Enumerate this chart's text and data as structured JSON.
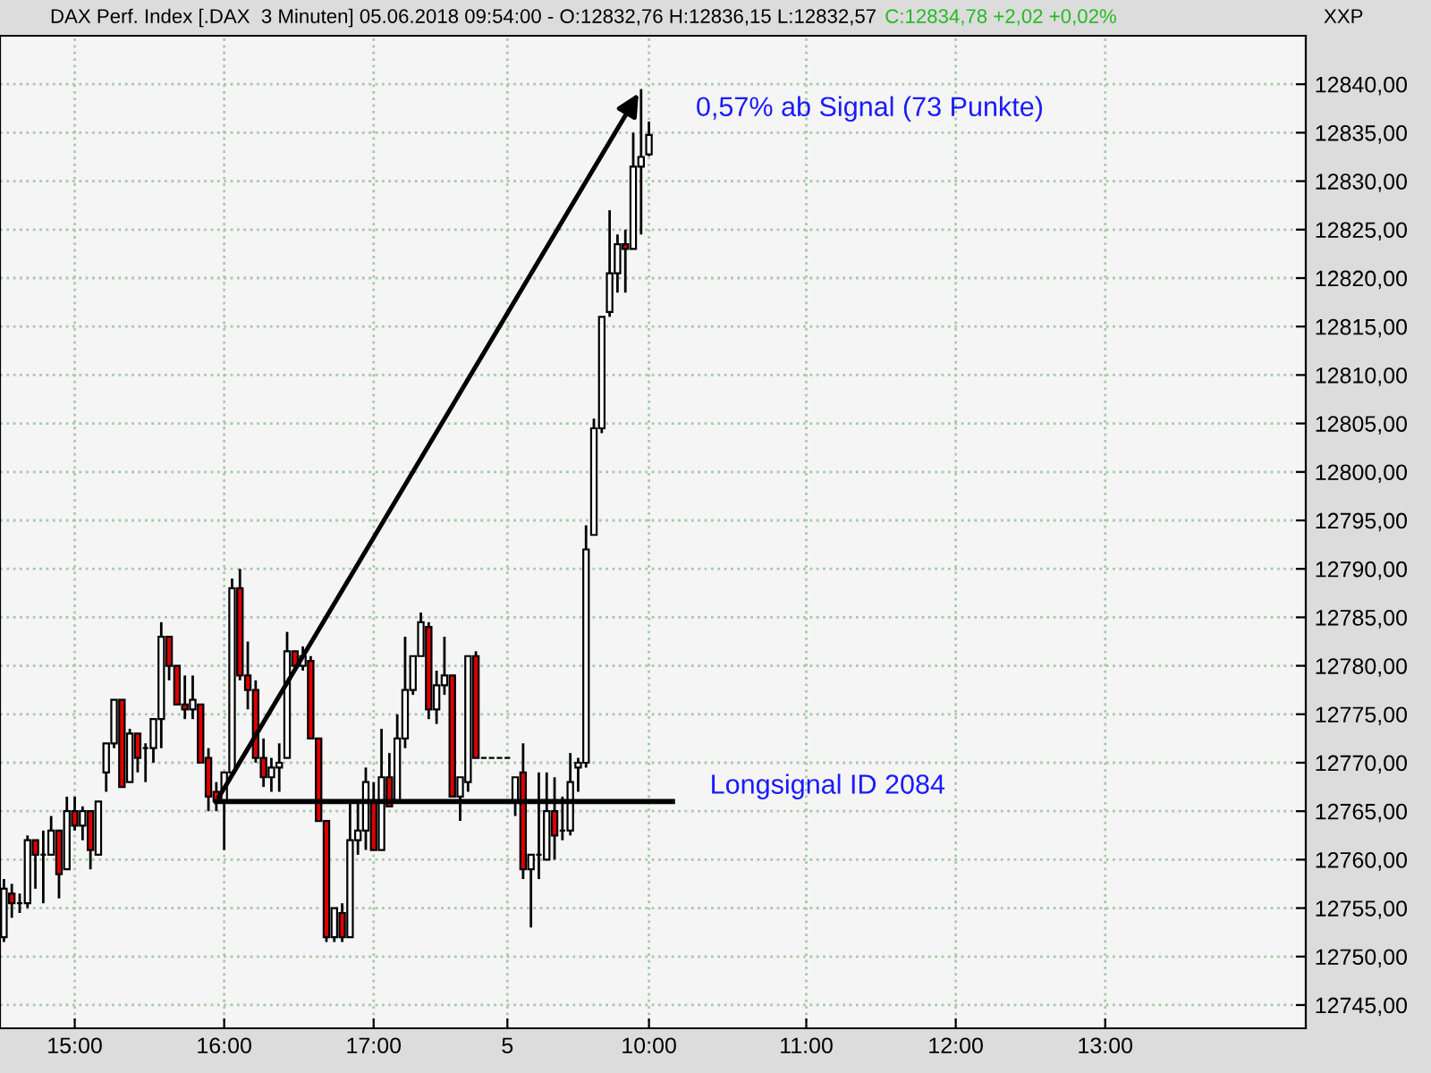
{
  "chart_data": {
    "type": "candlestick",
    "title": "DAX Perf. Index [.DAX  3 Minuten] 05.06.2018 09:54:00 - O:12832,76 H:12836,15 L:12832,57",
    "subtitle": "C:12834,78 +2,02 +0,02%",
    "categories": [
      null,
      null,
      null,
      null,
      null,
      null,
      null,
      null,
      null,
      "15:00",
      null,
      null,
      null,
      null,
      null,
      null,
      null,
      null,
      null,
      null,
      null,
      null,
      null,
      null,
      null,
      null,
      null,
      null,
      "16:00",
      null,
      null,
      null,
      null,
      null,
      null,
      null,
      null,
      null,
      null,
      null,
      null,
      null,
      null,
      null,
      null,
      null,
      null,
      "17:00",
      null,
      null,
      null,
      null,
      null,
      null,
      null,
      null,
      null,
      null,
      null,
      null,
      null,
      null,
      null,
      null,
      "5",
      null,
      null,
      null,
      null,
      null,
      null,
      null,
      null,
      null,
      null,
      null,
      null,
      null,
      null,
      null,
      null,
      null,
      "10:00",
      null,
      null,
      null,
      null,
      null,
      null,
      null,
      null,
      null,
      null,
      null,
      null,
      null,
      null,
      null,
      null,
      null,
      null,
      null,
      "11:00",
      null,
      null,
      null,
      null,
      null,
      null,
      null,
      null,
      null,
      null,
      null,
      null,
      null,
      null,
      null,
      null,
      null,
      null,
      "12:00",
      null,
      null,
      null,
      null,
      null,
      null,
      null,
      null,
      null,
      null,
      null,
      null,
      null,
      null,
      null,
      null,
      null,
      null,
      "13:00",
      null,
      null,
      null,
      null,
      null,
      null,
      null,
      null,
      null,
      null,
      null,
      null,
      null,
      null,
      null,
      null,
      null,
      null,
      null,
      null,
      null,
      null,
      null,
      null,
      null
    ],
    "ohlc": [
      [
        12752,
        12758,
        12751.5,
        12757
      ],
      [
        12756.5,
        12757.5,
        12754,
        12755.5
      ],
      [
        12755.5,
        12756.5,
        12754.5,
        12755.5
      ],
      [
        12755.5,
        12762.5,
        12755,
        12762
      ],
      [
        12762,
        12762,
        12757,
        12760.5
      ],
      [
        12760.5,
        12763,
        12755.5,
        12760.5
      ],
      [
        12760.5,
        12764.5,
        12760.5,
        12763
      ],
      [
        12763,
        12763,
        12756,
        12758.5
      ],
      [
        12759,
        12766.5,
        12759,
        12765
      ],
      [
        12765,
        12766.5,
        12763,
        12763.5
      ],
      [
        12763.5,
        12765.5,
        12762,
        12765
      ],
      [
        12765,
        12765,
        12759,
        12761
      ],
      [
        12760.5,
        12766,
        12760.5,
        12766
      ],
      [
        12769,
        12772,
        12767,
        12772
      ],
      [
        12772,
        12776.5,
        12771.5,
        12776.5
      ],
      [
        12776.5,
        12776.5,
        12767.5,
        12767.5
      ],
      [
        12768,
        12773.5,
        12768,
        12773
      ],
      [
        12773,
        12773,
        12769,
        12770.5
      ],
      [
        12771.5,
        12772,
        12768,
        12771.5
      ],
      [
        12771.5,
        12774.5,
        12770,
        12774.5
      ],
      [
        12774.5,
        12784.5,
        12771.5,
        12783
      ],
      [
        12783,
        12783,
        12778.5,
        12780
      ],
      [
        12780,
        12780,
        12776,
        12776
      ],
      [
        12776,
        12779,
        12774.5,
        12775.5
      ],
      [
        12775.5,
        12779,
        12774.5,
        12776.5
      ],
      [
        12776,
        12776,
        12770,
        12770
      ],
      [
        12770.5,
        12771.5,
        12765,
        12766.5
      ],
      [
        12767,
        12768,
        12765,
        12766
      ],
      [
        12766,
        12769,
        12761,
        12769
      ],
      [
        12769,
        12789,
        12769,
        12788
      ],
      [
        12788,
        12790,
        12778.5,
        12779
      ],
      [
        12779,
        12782.5,
        12775.5,
        12777.5
      ],
      [
        12777.5,
        12778.5,
        12770,
        12770.5
      ],
      [
        12770.5,
        12772.5,
        12767.5,
        12768.5
      ],
      [
        12768.5,
        12770.5,
        12767,
        12769.5
      ],
      [
        12769.5,
        12772,
        12767,
        12770
      ],
      [
        12770.5,
        12783.5,
        12770.5,
        12781.5
      ],
      [
        12781.5,
        12781.5,
        12779.5,
        12780
      ],
      [
        12780,
        12782,
        12779.5,
        12781
      ],
      [
        12780.5,
        12781,
        12772.5,
        12772.5
      ],
      [
        12772.5,
        12772.5,
        12764,
        12764
      ],
      [
        12764,
        12764,
        12751.5,
        12752
      ],
      [
        12752,
        12755,
        12751.5,
        12755
      ],
      [
        12754.5,
        12755.5,
        12751.5,
        12752
      ],
      [
        12752,
        12766,
        12752,
        12762
      ],
      [
        12762,
        12766,
        12760.5,
        12763
      ],
      [
        12763,
        12769.5,
        12761,
        12768
      ],
      [
        12766,
        12768,
        12761,
        12761
      ],
      [
        12761,
        12773.5,
        12761,
        12768.5
      ],
      [
        12768.5,
        12771,
        12765.5,
        12765.5
      ],
      [
        12766,
        12775,
        12766,
        12772.5
      ],
      [
        12772.5,
        12783,
        12771.5,
        12777.5
      ],
      [
        12777.5,
        12781,
        12777,
        12781
      ],
      [
        12781,
        12785.5,
        12781,
        12784.5
      ],
      [
        12784,
        12784.5,
        12774.5,
        12775.5
      ],
      [
        12775.5,
        12779.5,
        12774,
        12778
      ],
      [
        12778,
        12783,
        12777,
        12779
      ],
      [
        12779,
        12779,
        12766.5,
        12766.5
      ],
      [
        12766.5,
        12768.5,
        12764,
        12768.5
      ],
      [
        12768,
        12781,
        12767,
        12781
      ],
      [
        12781,
        12781.5,
        12770.5,
        12770.5
      ],
      [
        12770.5,
        12770.5,
        12770.5,
        12770.5
      ],
      [
        12770.5,
        12770.5,
        12770.5,
        12770.5
      ],
      [
        12770.5,
        12770.5,
        12770.5,
        12770.5
      ],
      [
        12770.5,
        12770.5,
        12770.5,
        12770.5
      ],
      [
        12766,
        12768.5,
        12764.5,
        12768.5
      ],
      [
        12769,
        12772,
        12758,
        12759
      ],
      [
        12759,
        12760.5,
        12753,
        12760.5
      ],
      [
        12760.5,
        12769,
        12758,
        12760.5
      ],
      [
        12760,
        12769,
        12760,
        12765
      ],
      [
        12765,
        12768.5,
        12760,
        12762.5
      ],
      [
        12763,
        12766.5,
        12762,
        12763
      ],
      [
        12763,
        12771,
        12762.5,
        12768
      ],
      [
        12769.5,
        12770.5,
        12767,
        12770
      ],
      [
        12770,
        12794.5,
        12769.5,
        12792
      ],
      [
        12793.5,
        12805.5,
        12793.5,
        12804.5
      ],
      [
        12804.5,
        12816,
        12804,
        12816
      ],
      [
        12816.5,
        12827,
        12816,
        12820.5
      ],
      [
        12820.5,
        12824.5,
        12818.5,
        12823.5
      ],
      [
        12823.5,
        12825,
        12818.5,
        12823
      ],
      [
        12823,
        12835,
        12823,
        12831.5
      ],
      [
        12831.5,
        12839.5,
        12824.5,
        12832.5
      ],
      [
        12832.76,
        12836.15,
        12832.57,
        12834.78
      ],
      null,
      null,
      null,
      null,
      null,
      null,
      null,
      null,
      null,
      null,
      null,
      null,
      null,
      null,
      null,
      null,
      null,
      null,
      null,
      null,
      null,
      null,
      null,
      null,
      null,
      null,
      null,
      null,
      null,
      null,
      null,
      null,
      null,
      null,
      null,
      null,
      null,
      null,
      null,
      null,
      null,
      null,
      null,
      null,
      null,
      null,
      null,
      null,
      null,
      null,
      null,
      null,
      null,
      null,
      null,
      null,
      null,
      null,
      null,
      null,
      null,
      null,
      null,
      null,
      null,
      null,
      null,
      null,
      null,
      null,
      null,
      null,
      null,
      null,
      null,
      null,
      null,
      null,
      null,
      null,
      null,
      null,
      null
    ],
    "series": [
      {
        "type": "line",
        "color": "#000000",
        "values": [
          null,
          null,
          null,
          null,
          null,
          null,
          null,
          null,
          null,
          null,
          null,
          null,
          null,
          null,
          null,
          null,
          null,
          null,
          null,
          null,
          null,
          null,
          null,
          null,
          null,
          null,
          null,
          12766,
          12766,
          12766,
          12766,
          12766,
          12766,
          12766,
          12766,
          12766,
          12766,
          12766,
          12766,
          12766,
          12766,
          12766,
          12766,
          12766,
          12766,
          12766,
          12766,
          12766,
          12766,
          12766,
          12766,
          12766,
          12766,
          12766,
          12766,
          12766,
          12766,
          12766,
          12766,
          12766,
          12766,
          12766,
          12766,
          12766,
          12766,
          12766,
          12766,
          12766,
          12766,
          12766,
          12766,
          12766,
          12766,
          12766,
          12766,
          12766,
          12766,
          12766,
          12766,
          12766,
          12766,
          12766,
          12766,
          12766,
          12766,
          12766,
          null,
          null,
          null,
          null,
          null,
          null,
          null,
          null,
          null,
          null,
          null,
          null,
          null,
          null,
          null,
          null,
          null,
          null,
          null,
          null,
          null,
          null,
          null,
          null,
          null,
          null,
          null,
          null,
          null,
          null,
          null,
          null,
          null,
          null,
          null,
          null,
          null,
          null,
          null,
          null,
          null,
          null,
          null,
          null,
          null,
          null,
          null,
          null,
          null,
          null,
          null,
          null,
          null,
          null,
          null,
          null,
          null,
          null,
          null,
          null,
          null,
          null,
          null,
          null,
          null,
          null,
          null,
          null,
          null,
          null,
          null,
          null,
          null,
          null,
          null,
          null,
          null,
          null,
          null,
          null
        ]
      }
    ],
    "annotations": [
      "0,57% ab Signal (73 Punkte)",
      "Longsignal ID 2084",
      "XXP"
    ],
    "ylim": [
      12742.6,
      12845
    ],
    "yticks": [
      {
        "value": 12745,
        "label": "12745,00"
      },
      {
        "value": 12750,
        "label": "12750,00"
      },
      {
        "value": 12755,
        "label": "12755,00"
      },
      {
        "value": 12760,
        "label": "12760,00"
      },
      {
        "value": 12765,
        "label": "12765,00"
      },
      {
        "value": 12770,
        "label": "12770,00"
      },
      {
        "value": 12775,
        "label": "12775,00"
      },
      {
        "value": 12780,
        "label": "12780,00"
      },
      {
        "value": 12785,
        "label": "12785,00"
      },
      {
        "value": 12790,
        "label": "12790,00"
      },
      {
        "value": 12795,
        "label": "12795,00"
      },
      {
        "value": 12800,
        "label": "12800,00"
      },
      {
        "value": 12805,
        "label": "12805,00"
      },
      {
        "value": 12810,
        "label": "12810,00"
      },
      {
        "value": 12815,
        "label": "12815,00"
      },
      {
        "value": 12820,
        "label": "12820,00"
      },
      {
        "value": 12825,
        "label": "12825,00"
      },
      {
        "value": 12830,
        "label": "12830,00"
      },
      {
        "value": 12835,
        "label": "12835,00"
      },
      {
        "value": 12840,
        "label": "12840,00"
      }
    ],
    "grid": true
  }
}
